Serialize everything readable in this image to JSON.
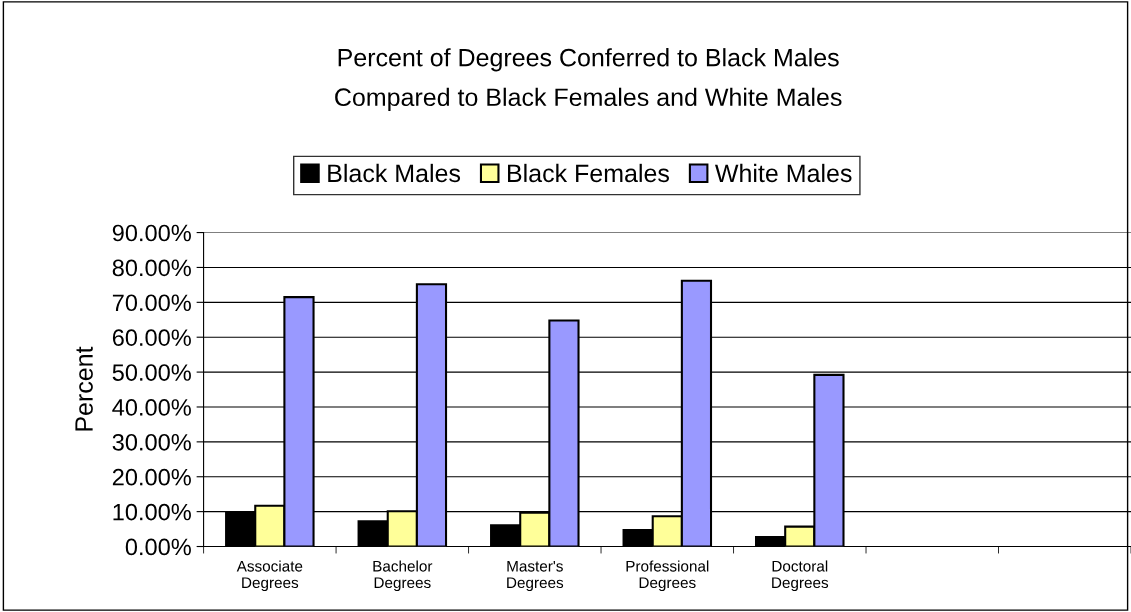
{
  "chart_data": {
    "type": "bar",
    "title": "Percent of Degrees Conferred to Black Males\nCompared to Black Females and White Males",
    "ylabel": "Percent",
    "categories": [
      "Associate\nDegrees",
      "Bachelor\nDegrees",
      "Master's\nDegrees",
      "Professional\nDegrees",
      "Doctoral\nDegrees",
      null,
      null
    ],
    "series": [
      {
        "name": "Black Males",
        "color": "#000000",
        "values": [
          9.8,
          7.2,
          6.1,
          4.7,
          2.7,
          null,
          null
        ]
      },
      {
        "name": "Black Females",
        "color": "#ffff99",
        "values": [
          11.7,
          10.1,
          9.7,
          8.7,
          5.7,
          null,
          null
        ]
      },
      {
        "name": "White Males",
        "color": "#9999ff",
        "values": [
          71.5,
          75.2,
          64.8,
          76.2,
          49.2,
          null,
          null
        ]
      }
    ],
    "ylim": [
      0,
      90
    ],
    "yticks": [
      {
        "value": 0,
        "label": "0.00%"
      },
      {
        "value": 10,
        "label": "10.00%"
      },
      {
        "value": 20,
        "label": "20.00%"
      },
      {
        "value": 30,
        "label": "30.00%"
      },
      {
        "value": 40,
        "label": "40.00%"
      },
      {
        "value": 50,
        "label": "50.00%"
      },
      {
        "value": 60,
        "label": "60.00%"
      },
      {
        "value": 70,
        "label": "70.00%"
      },
      {
        "value": 80,
        "label": "80.00%"
      },
      {
        "value": 90,
        "label": "90.00%"
      }
    ],
    "grid": "y",
    "legend": "top"
  }
}
